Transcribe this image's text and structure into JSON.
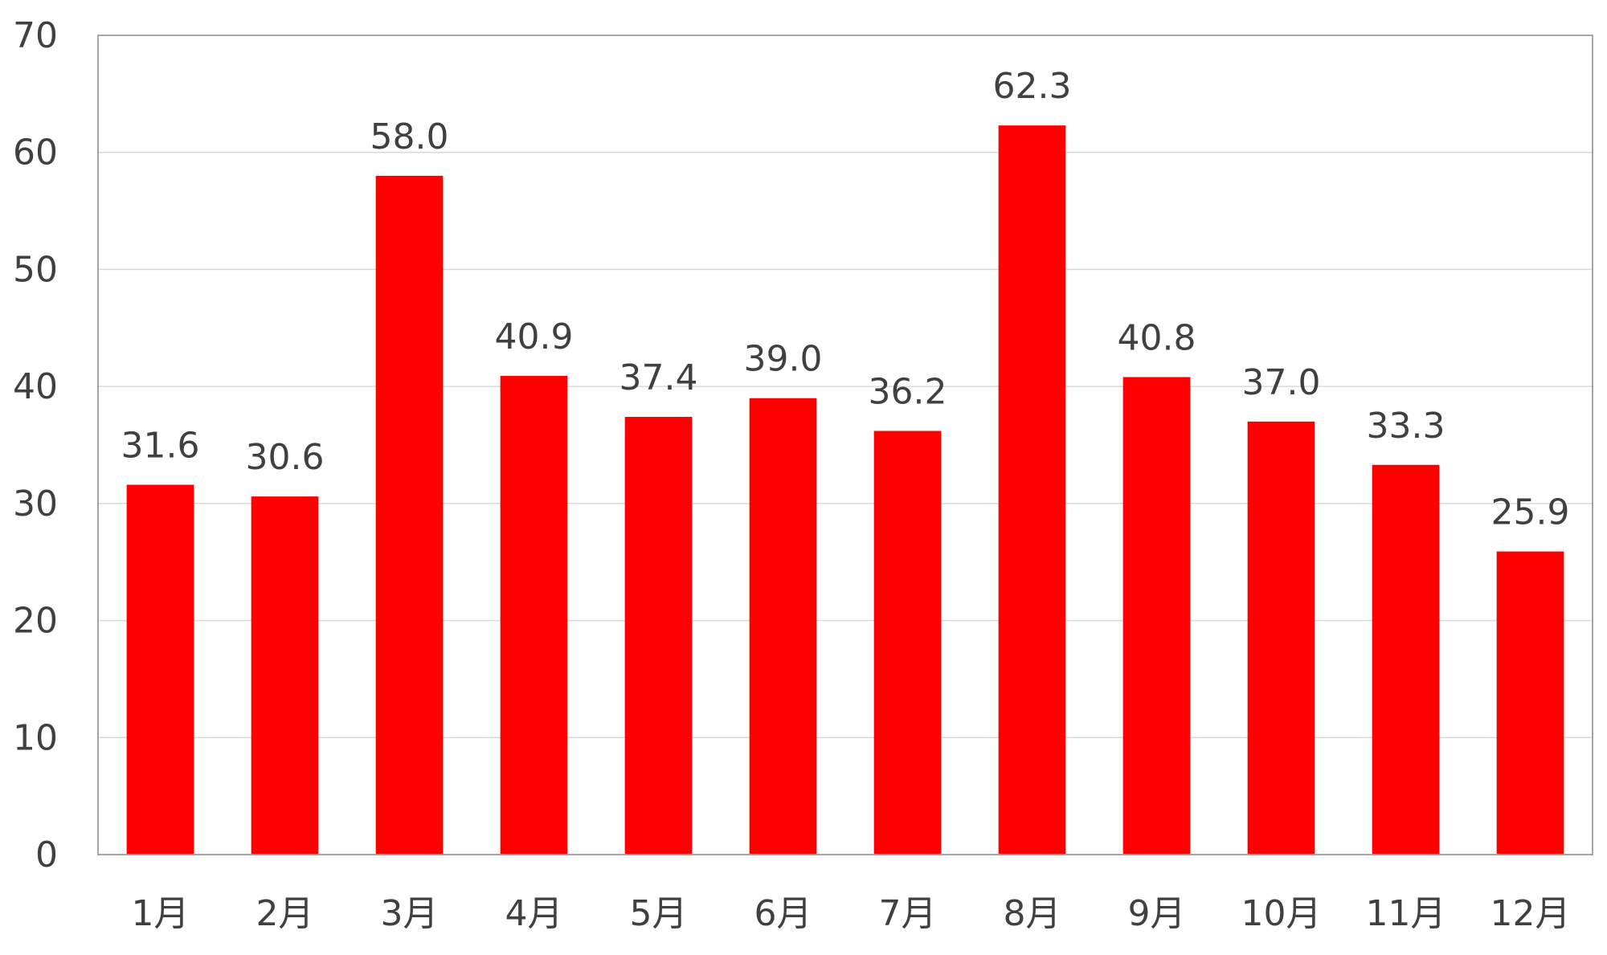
{
  "chart_data": {
    "type": "bar",
    "title": "",
    "xlabel": "",
    "ylabel": "",
    "categories": [
      "1月",
      "2月",
      "3月",
      "4月",
      "5月",
      "6月",
      "7月",
      "8月",
      "9月",
      "10月",
      "11月",
      "12月"
    ],
    "values": [
      31.6,
      30.6,
      58.0,
      40.9,
      37.4,
      39.0,
      36.2,
      62.3,
      40.8,
      37.0,
      33.3,
      25.9
    ],
    "data_labels": [
      "31.6",
      "30.6",
      "58.0",
      "40.9",
      "37.4",
      "39.0",
      "36.2",
      "62.3",
      "40.8",
      "37.0",
      "33.3",
      "25.9"
    ],
    "ylim": [
      0,
      70
    ],
    "yticks": [
      0,
      10,
      20,
      30,
      40,
      50,
      60,
      70
    ],
    "grid": true,
    "legend": "none",
    "bar_color": "#FF0000",
    "grid_color": "#D9D9D9",
    "axis_color": "#A6A6A6",
    "text_color": "#404040"
  }
}
